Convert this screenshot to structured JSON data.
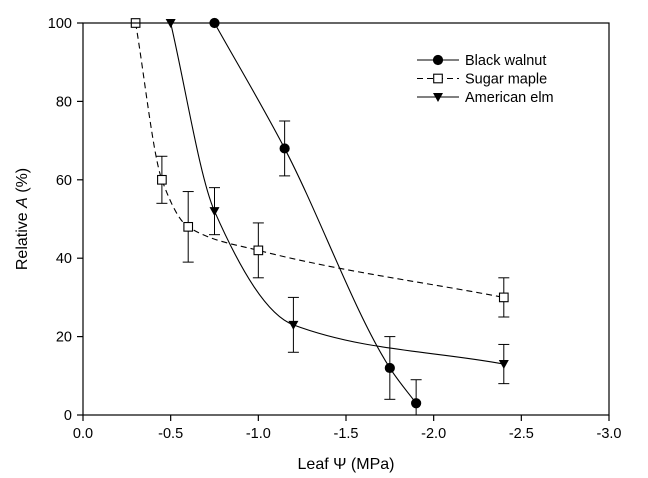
{
  "chart_data": {
    "type": "line",
    "xlabel": "Leaf Ψ (MPa)",
    "ylabel": "Relative A (%)",
    "ylabel_parts": [
      "Relative ",
      "A",
      " (%)"
    ],
    "xlim": [
      0,
      -3
    ],
    "ylim": [
      0,
      100
    ],
    "x_reversed": true,
    "grid": false,
    "legend_position": "top-right",
    "x_ticks": [
      0,
      -0.5,
      -1,
      -1.5,
      -2,
      -2.5,
      -3
    ],
    "x_tick_labels": [
      "0.0",
      "-0.5",
      "-1.0",
      "-1.5",
      "-2.0",
      "-2.5",
      "-3.0"
    ],
    "y_ticks": [
      0,
      20,
      40,
      60,
      80,
      100
    ],
    "y_tick_labels": [
      "0",
      "20",
      "40",
      "60",
      "80",
      "100"
    ],
    "series": [
      {
        "name": "Black walnut",
        "marker": "filled-circle",
        "line_style": "solid",
        "color": "#000000",
        "points": [
          {
            "x": -0.75,
            "y": 100
          },
          {
            "x": -1.15,
            "y": 68,
            "err": 7
          },
          {
            "x": -1.75,
            "y": 12,
            "err": 8
          },
          {
            "x": -1.9,
            "y": 3,
            "err": 6
          }
        ]
      },
      {
        "name": "Sugar maple",
        "marker": "open-square",
        "line_style": "dashed",
        "color": "#000000",
        "points": [
          {
            "x": -0.3,
            "y": 100
          },
          {
            "x": -0.45,
            "y": 60,
            "err": 6
          },
          {
            "x": -0.6,
            "y": 48,
            "err": 9
          },
          {
            "x": -1.0,
            "y": 42,
            "err": 7
          },
          {
            "x": -2.4,
            "y": 30,
            "err": 5
          }
        ]
      },
      {
        "name": "American elm",
        "marker": "filled-triangle-down",
        "line_style": "solid",
        "color": "#000000",
        "points": [
          {
            "x": -0.5,
            "y": 100
          },
          {
            "x": -0.75,
            "y": 52,
            "err": 6
          },
          {
            "x": -1.2,
            "y": 23,
            "err": 7
          },
          {
            "x": -2.4,
            "y": 13,
            "err": 5
          }
        ]
      }
    ]
  }
}
